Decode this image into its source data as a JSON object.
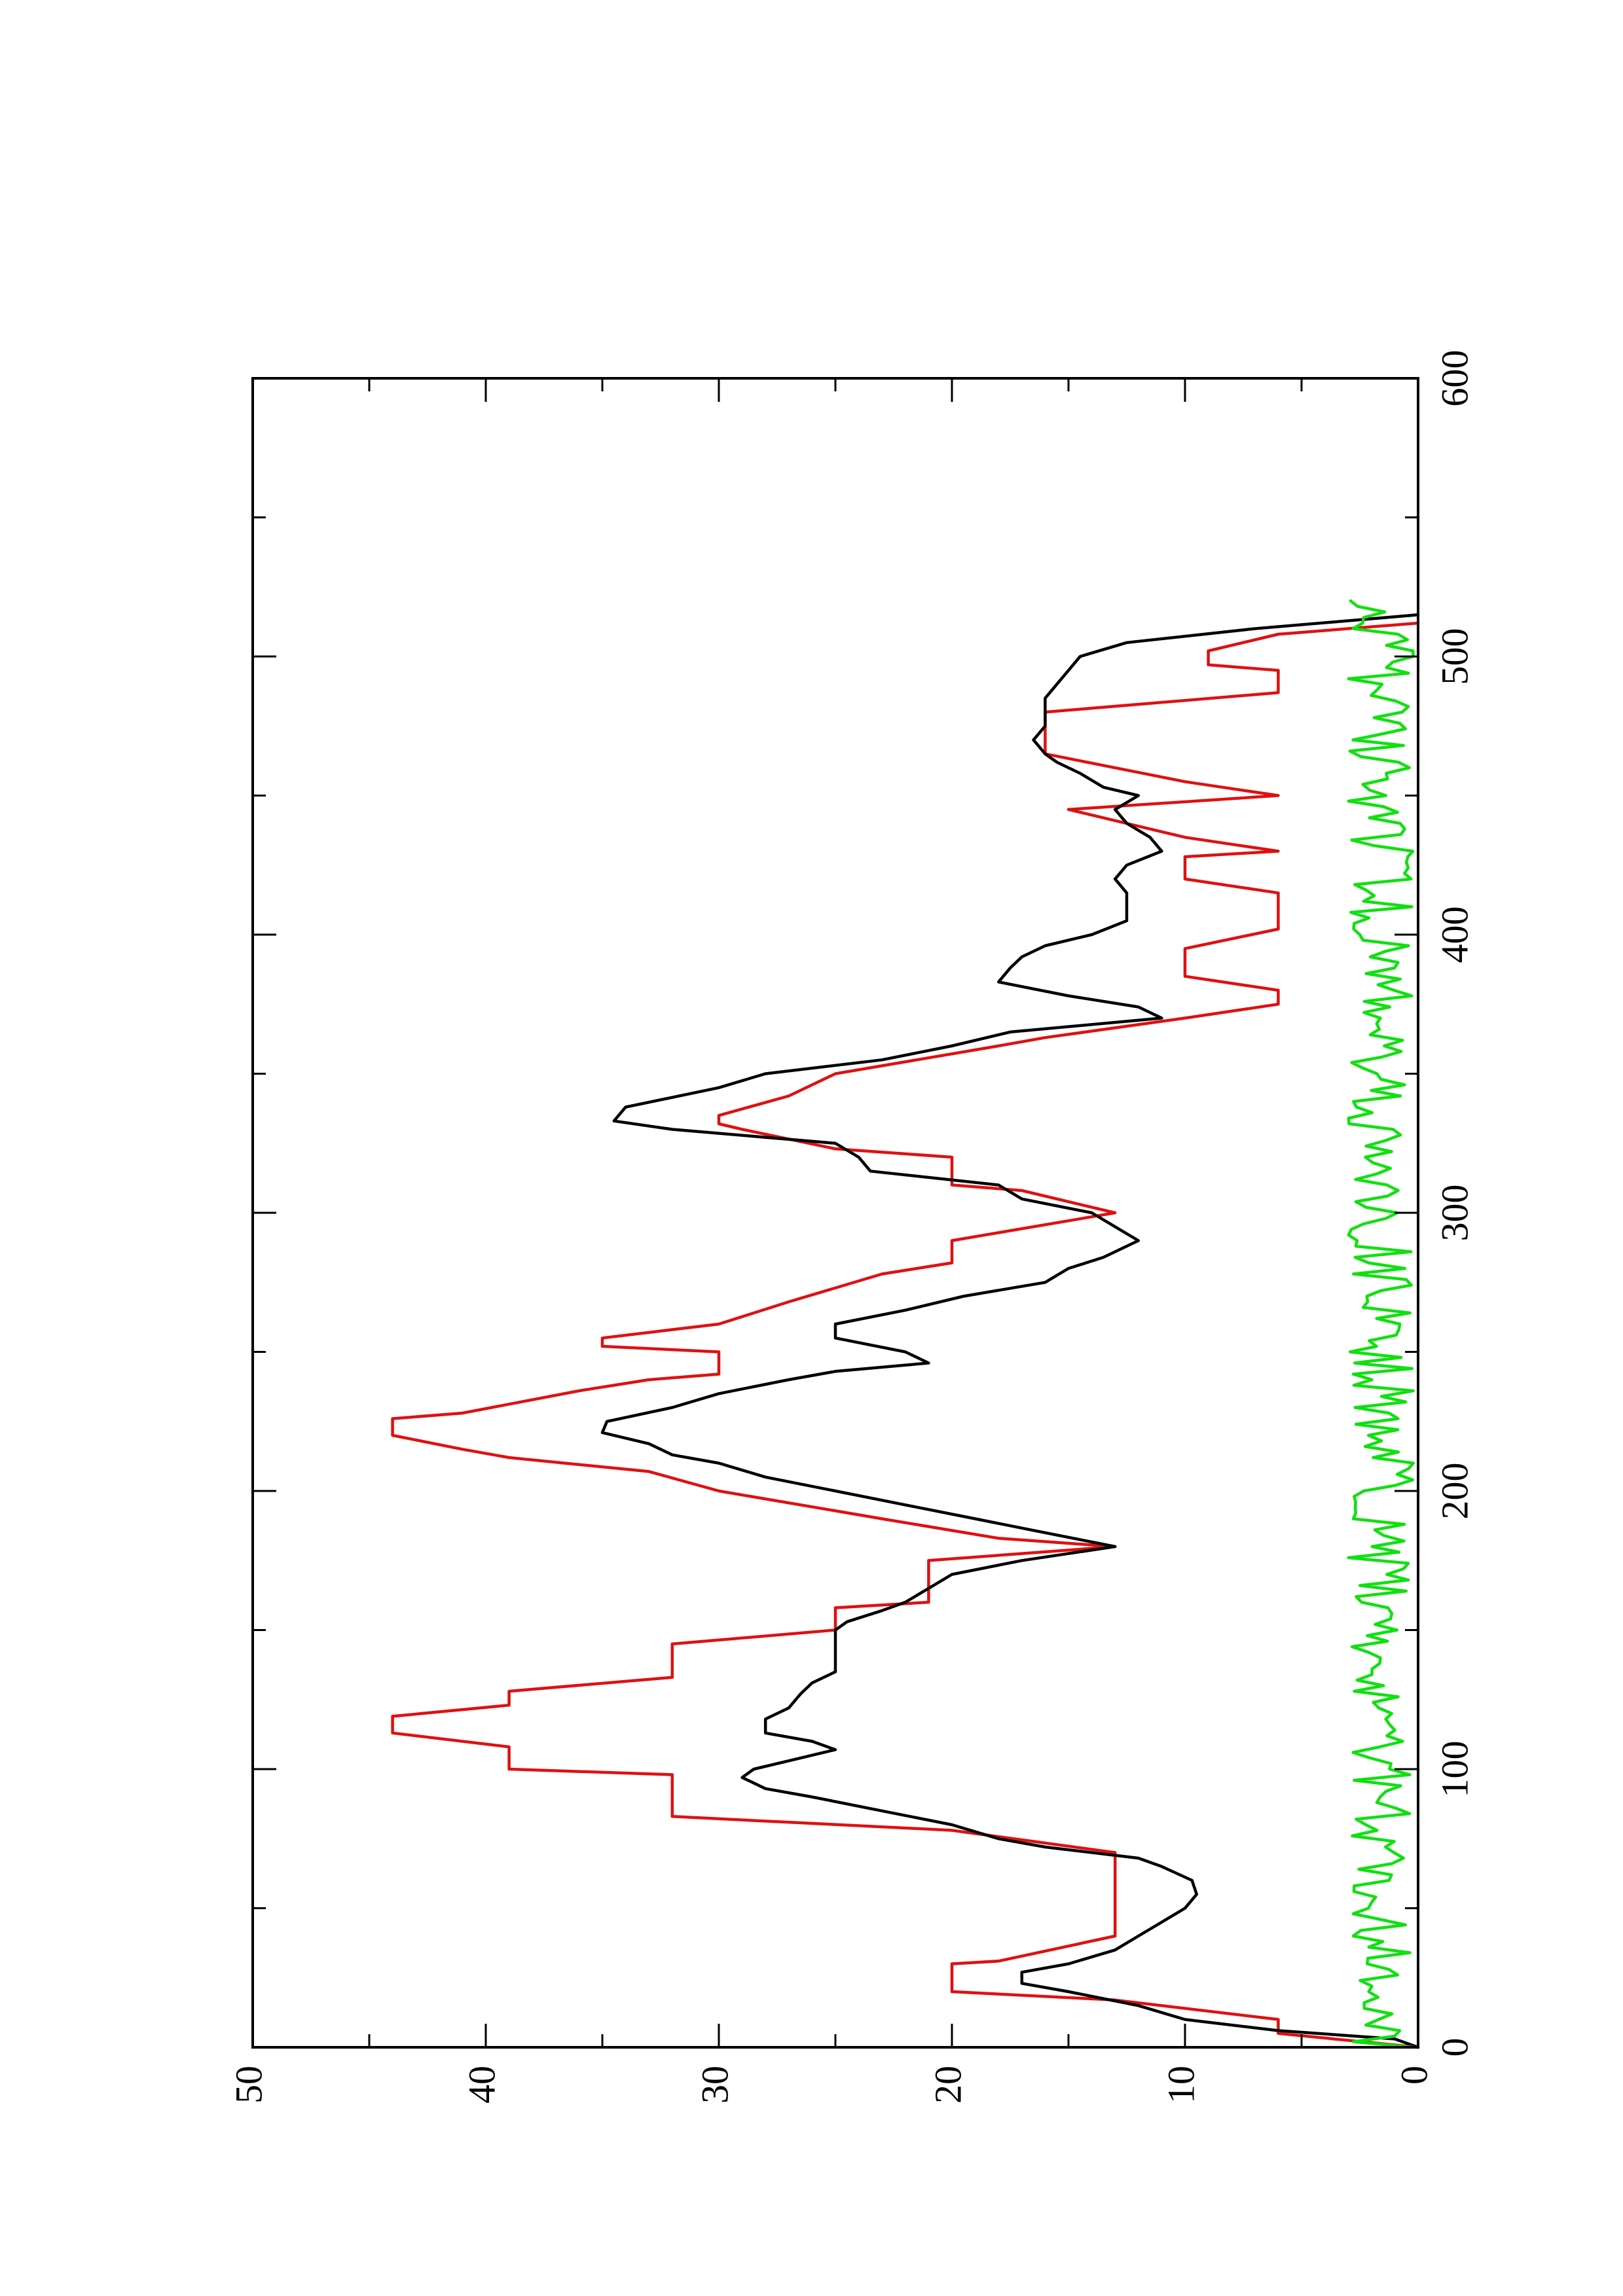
{
  "chart_data": {
    "type": "line",
    "orientation": "rotated-90-counterclockwise",
    "title": "",
    "xlabel": "",
    "ylabel": "",
    "xlim": [
      0,
      600
    ],
    "ylim": [
      0,
      50
    ],
    "x_ticks": [
      0,
      100,
      200,
      300,
      400,
      500,
      600
    ],
    "x_tick_labels": [
      "0",
      "100",
      "200",
      "300",
      "400",
      "500",
      "600"
    ],
    "x_minor_ticks": [
      50,
      150,
      250,
      350,
      450,
      550
    ],
    "y_ticks": [
      0,
      10,
      20,
      30,
      40,
      50
    ],
    "y_tick_labels": [
      "0",
      "10",
      "20",
      "30",
      "40",
      "50"
    ],
    "y_minor_ticks": [
      5,
      15,
      25,
      35,
      45
    ],
    "grid": false,
    "legend": "none",
    "series": [
      {
        "color": "#e01010",
        "style": "step",
        "points": [
          [
            0,
            0
          ],
          [
            5,
            6
          ],
          [
            10,
            6
          ],
          [
            17,
            13
          ],
          [
            20,
            20
          ],
          [
            30,
            20
          ],
          [
            31,
            18
          ],
          [
            40,
            13
          ],
          [
            70,
            13
          ],
          [
            78,
            20
          ],
          [
            83,
            32
          ],
          [
            98,
            32
          ],
          [
            100,
            39
          ],
          [
            108,
            39
          ],
          [
            113,
            44
          ],
          [
            119,
            44
          ],
          [
            123,
            39
          ],
          [
            128,
            39
          ],
          [
            133,
            32
          ],
          [
            145,
            32
          ],
          [
            150,
            25
          ],
          [
            158,
            25
          ],
          [
            160,
            21
          ],
          [
            168,
            21
          ],
          [
            175,
            21
          ],
          [
            180,
            13
          ],
          [
            183,
            18
          ],
          [
            190,
            23
          ],
          [
            200,
            30
          ],
          [
            207,
            33
          ],
          [
            212,
            39
          ],
          [
            215,
            41
          ],
          [
            220,
            44
          ],
          [
            226,
            44
          ],
          [
            228,
            41
          ],
          [
            236,
            36
          ],
          [
            240,
            33
          ],
          [
            242,
            30
          ],
          [
            250,
            30
          ],
          [
            252,
            35
          ],
          [
            255,
            35
          ],
          [
            260,
            30
          ],
          [
            268,
            27
          ],
          [
            278,
            23
          ],
          [
            282,
            20
          ],
          [
            290,
            20
          ],
          [
            300,
            13
          ],
          [
            308,
            17
          ],
          [
            310,
            20
          ],
          [
            320,
            20
          ],
          [
            323,
            25
          ],
          [
            330,
            29
          ],
          [
            332,
            30
          ],
          [
            335,
            30
          ],
          [
            342,
            27
          ],
          [
            350,
            25
          ],
          [
            360,
            18
          ],
          [
            363,
            16
          ],
          [
            370,
            10
          ],
          [
            375,
            6
          ],
          [
            380,
            6
          ],
          [
            385,
            10
          ],
          [
            395,
            10
          ],
          [
            402,
            6
          ],
          [
            415,
            6
          ],
          [
            420,
            10
          ],
          [
            428,
            10
          ],
          [
            430,
            6
          ],
          [
            435,
            10
          ],
          [
            445,
            15
          ],
          [
            450,
            6
          ],
          [
            455,
            10
          ],
          [
            465,
            16
          ],
          [
            480,
            16
          ],
          [
            487,
            6
          ],
          [
            495,
            6
          ],
          [
            497,
            9
          ],
          [
            502,
            9
          ],
          [
            508,
            6
          ],
          [
            512,
            0
          ]
        ]
      },
      {
        "color": "#000000",
        "style": "line",
        "points": [
          [
            0,
            0
          ],
          [
            3,
            1
          ],
          [
            6,
            6
          ],
          [
            10,
            10
          ],
          [
            15,
            12
          ],
          [
            20,
            15
          ],
          [
            23,
            17
          ],
          [
            27,
            17
          ],
          [
            30,
            15
          ],
          [
            35,
            13
          ],
          [
            40,
            12
          ],
          [
            45,
            11
          ],
          [
            50,
            10
          ],
          [
            55,
            9.5
          ],
          [
            60,
            9.7
          ],
          [
            65,
            11
          ],
          [
            68,
            12
          ],
          [
            72,
            16
          ],
          [
            75,
            18
          ],
          [
            80,
            20
          ],
          [
            85,
            23
          ],
          [
            90,
            26
          ],
          [
            93,
            28
          ],
          [
            97,
            29
          ],
          [
            100,
            28.5
          ],
          [
            103,
            27
          ],
          [
            107,
            25
          ],
          [
            110,
            26
          ],
          [
            113,
            28
          ],
          [
            118,
            28
          ],
          [
            122,
            27
          ],
          [
            127,
            26.5
          ],
          [
            131,
            26
          ],
          [
            135,
            25
          ],
          [
            140,
            25
          ],
          [
            145,
            25
          ],
          [
            150,
            25
          ],
          [
            153,
            24.5
          ],
          [
            157,
            23
          ],
          [
            160,
            22
          ],
          [
            165,
            21
          ],
          [
            170,
            20
          ],
          [
            175,
            17
          ],
          [
            180,
            13
          ],
          [
            185,
            16
          ],
          [
            190,
            19
          ],
          [
            195,
            22
          ],
          [
            200,
            25
          ],
          [
            205,
            28
          ],
          [
            210,
            30
          ],
          [
            213,
            32
          ],
          [
            217,
            33
          ],
          [
            221,
            35
          ],
          [
            225,
            34.8
          ],
          [
            230,
            32
          ],
          [
            235,
            30
          ],
          [
            240,
            27
          ],
          [
            243,
            25
          ],
          [
            246,
            21
          ],
          [
            250,
            22
          ],
          [
            255,
            25
          ],
          [
            260,
            25
          ],
          [
            265,
            22
          ],
          [
            270,
            19.5
          ],
          [
            275,
            16
          ],
          [
            280,
            15
          ],
          [
            284,
            13.5
          ],
          [
            290,
            12
          ],
          [
            295,
            13
          ],
          [
            300,
            14
          ],
          [
            305,
            17
          ],
          [
            310,
            18
          ],
          [
            315,
            23.5
          ],
          [
            320,
            24
          ],
          [
            325,
            25
          ],
          [
            330,
            32
          ],
          [
            333,
            34.5
          ],
          [
            338,
            34
          ],
          [
            345,
            30
          ],
          [
            350,
            28
          ],
          [
            355,
            23
          ],
          [
            360,
            20
          ],
          [
            365,
            17.5
          ],
          [
            370,
            11
          ],
          [
            374,
            12
          ],
          [
            378,
            15
          ],
          [
            383,
            18
          ],
          [
            388,
            17.5
          ],
          [
            392,
            17
          ],
          [
            396,
            16
          ],
          [
            400,
            14
          ],
          [
            405,
            12.5
          ],
          [
            410,
            12.5
          ],
          [
            415,
            12.5
          ],
          [
            420,
            13
          ],
          [
            425,
            12.5
          ],
          [
            430,
            11
          ],
          [
            435,
            11.5
          ],
          [
            440,
            12.5
          ],
          [
            445,
            13
          ],
          [
            450,
            12
          ],
          [
            453,
            13.5
          ],
          [
            458,
            14.5
          ],
          [
            462,
            15.5
          ],
          [
            465,
            16
          ],
          [
            470,
            16.5
          ],
          [
            475,
            16
          ],
          [
            480,
            16
          ],
          [
            485,
            16
          ],
          [
            490,
            15.5
          ],
          [
            495,
            15
          ],
          [
            500,
            14.5
          ],
          [
            505,
            12.5
          ],
          [
            510,
            7
          ],
          [
            515,
            0
          ]
        ]
      },
      {
        "color": "#10e010",
        "style": "line",
        "noise": {
          "x_step": 2,
          "x_start": 0,
          "x_end": 520,
          "mean": 1.6,
          "amplitude": 1.4,
          "seed": 7
        }
      }
    ]
  }
}
